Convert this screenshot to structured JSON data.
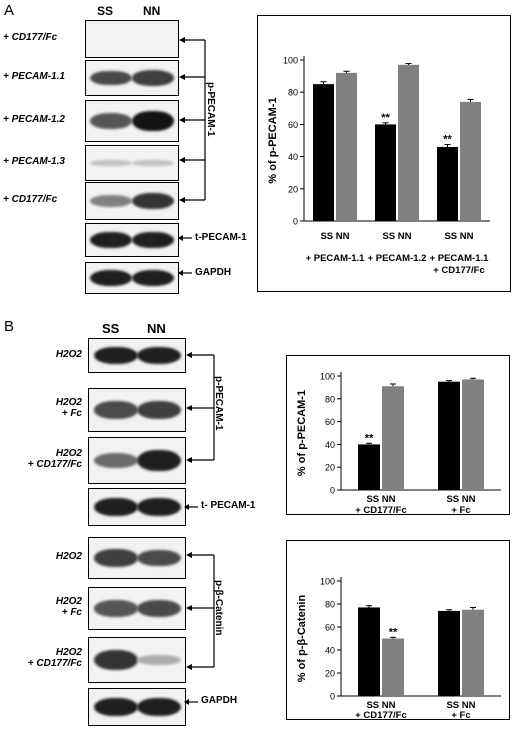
{
  "panel_a": {
    "label": "A",
    "lanes": [
      "SS",
      "NN"
    ],
    "rows": [
      {
        "label": "+ CD177/Fc",
        "band_ss": 0.0,
        "band_nn": 0.0
      },
      {
        "label": "+ PECAM-1.1",
        "band_ss": 0.75,
        "band_nn": 0.8
      },
      {
        "label": "+ PECAM-1.2",
        "band_ss": 0.7,
        "band_nn": 1.0
      },
      {
        "label": "+ PECAM-1.3",
        "band_ss": 0.2,
        "band_nn": 0.2
      },
      {
        "label": "+ CD177/Fc",
        "band_ss": 0.5,
        "band_nn": 0.85
      },
      {
        "label": "",
        "band_ss": 0.95,
        "band_nn": 0.95
      },
      {
        "label": "",
        "band_ss": 0.95,
        "band_nn": 0.95
      }
    ],
    "bracket_label": "p-PECAM-1",
    "t_pecam_label": "t-PECAM-1",
    "gapdh_label": "GAPDH"
  },
  "panel_b": {
    "label": "B",
    "lanes": [
      "SS",
      "NN"
    ],
    "rows": [
      {
        "label": "H2O2",
        "band_ss": 0.95,
        "band_nn": 0.95
      },
      {
        "label": "H2O2\n+ Fc",
        "band_ss": 0.75,
        "band_nn": 0.8
      },
      {
        "label": "H2O2\n+ CD177/Fc",
        "band_ss": 0.6,
        "band_nn": 0.95
      },
      {
        "label": "",
        "band_ss": 0.95,
        "band_nn": 0.95
      },
      {
        "label": "H2O2",
        "band_ss": 0.8,
        "band_nn": 0.75
      },
      {
        "label": "H2O2\n+ Fc",
        "band_ss": 0.7,
        "band_nn": 0.75
      },
      {
        "label": "H2O2\n+ CD177/Fc",
        "band_ss": 0.85,
        "band_nn": 0.3
      },
      {
        "label": "",
        "band_ss": 0.95,
        "band_nn": 0.95
      }
    ],
    "bracket_pecam_label": "p-PECAM-1",
    "t_pecam_label": "t- PECAM-1",
    "bracket_catenin_label": "p-β-Catenin",
    "gapdh_label": "GAPDH"
  },
  "colors": {
    "ss_bar": "#000000",
    "nn_bar": "#808080",
    "band": "#1a1a1a"
  },
  "chart_data": [
    {
      "type": "bar",
      "ylabel": "% of p-PECAM-1",
      "ylim": [
        0,
        100
      ],
      "yticks": [
        0,
        20,
        40,
        60,
        80,
        100
      ],
      "groups": [
        {
          "lanes": "SS  NN",
          "name": "+ PECAM-1.1",
          "name2": ""
        },
        {
          "lanes": "SS  NN",
          "name": "+ PECAM-1.2",
          "name2": ""
        },
        {
          "lanes": "SS  NN",
          "name": "+ PECAM-1.1",
          "name2": "+ CD177/Fc"
        }
      ],
      "series": [
        {
          "values": [
            85,
            60,
            46
          ],
          "errors": [
            1.5,
            1.0,
            1.5
          ]
        },
        {
          "values": [
            92,
            97,
            74
          ],
          "errors": [
            1.0,
            0.8,
            1.5
          ]
        }
      ],
      "annotations": [
        {
          "group": 1,
          "text": "**"
        },
        {
          "group": 2,
          "text": "**"
        }
      ]
    },
    {
      "type": "bar",
      "ylabel": "% of p-PECAM-1",
      "ylim": [
        0,
        100
      ],
      "yticks": [
        0,
        20,
        40,
        60,
        80,
        100
      ],
      "groups": [
        {
          "lanes": "SS  NN",
          "name": "+ CD177/Fc",
          "name2": ""
        },
        {
          "lanes": "SS  NN",
          "name": "+ Fc",
          "name2": ""
        }
      ],
      "series": [
        {
          "values": [
            40,
            95
          ],
          "errors": [
            1.0,
            1.0
          ]
        },
        {
          "values": [
            91,
            97
          ],
          "errors": [
            2.0,
            1.0
          ]
        }
      ],
      "annotations": [
        {
          "group": 0,
          "text": "**"
        }
      ]
    },
    {
      "type": "bar",
      "ylabel": "% of p-β-Catenin",
      "ylim": [
        0,
        100
      ],
      "yticks": [
        0,
        20,
        40,
        60,
        80,
        100
      ],
      "groups": [
        {
          "lanes": "SS  NN",
          "name": "+ CD177/Fc",
          "name2": ""
        },
        {
          "lanes": "SS  NN",
          "name": "+ Fc",
          "name2": ""
        }
      ],
      "series": [
        {
          "values": [
            77,
            74
          ],
          "errors": [
            1.5,
            1.0
          ]
        },
        {
          "values": [
            50,
            75
          ],
          "errors": [
            1.0,
            2.0
          ]
        }
      ],
      "annotations": [
        {
          "group": 0,
          "text": "**",
          "series": 1
        }
      ]
    }
  ]
}
